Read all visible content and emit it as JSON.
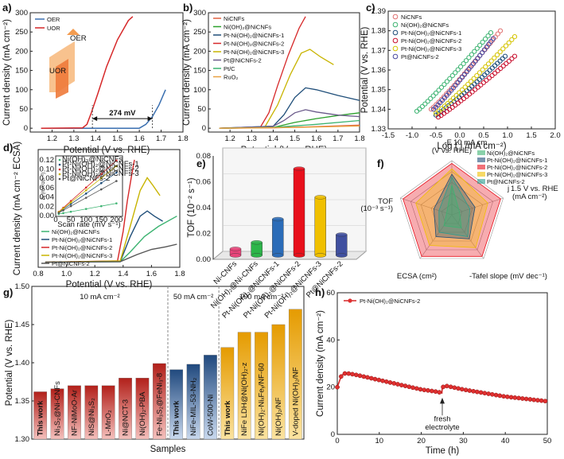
{
  "chart_data": [
    {
      "panel": "a",
      "type": "line",
      "xlabel": "Potential (V vs. RHE)",
      "ylabel": "Current density (mA cm⁻²)",
      "xlim": [
        1.1,
        1.8
      ],
      "ylim": [
        -10,
        300
      ],
      "xticks": [
        "1.2",
        "1.3",
        "1.4",
        "1.5",
        "1.6",
        "1.7",
        "1.8"
      ],
      "yticks": [
        "0",
        "50",
        "100",
        "150",
        "200",
        "250",
        "300"
      ],
      "series": [
        {
          "name": "OER",
          "color": "#3a6fb0",
          "x": [
            1.15,
            1.6,
            1.63,
            1.66,
            1.69,
            1.72
          ],
          "y": [
            0,
            0,
            10,
            30,
            60,
            100
          ]
        },
        {
          "name": "UOR",
          "color": "#d62728",
          "x": [
            1.15,
            1.34,
            1.36,
            1.38,
            1.41,
            1.45,
            1.5,
            1.55,
            1.57
          ],
          "y": [
            0,
            1,
            10,
            40,
            90,
            160,
            230,
            280,
            290
          ]
        }
      ],
      "annotations": {
        "gap": "274 mV",
        "inset_oer": "OER",
        "inset_uor": "UOR"
      }
    },
    {
      "panel": "b",
      "type": "line",
      "xlabel": "Potential (V vs. RHE)",
      "ylabel": "Current density (mA cm⁻²)",
      "xlim": [
        1.1,
        1.8
      ],
      "ylim": [
        -10,
        300
      ],
      "xticks": [
        "1.2",
        "1.3",
        "1.4",
        "1.5",
        "1.6",
        "1.7",
        "1.8"
      ],
      "yticks": [
        "0",
        "50",
        "100",
        "150",
        "200",
        "250",
        "300"
      ],
      "series": [
        {
          "name": "NiCNFs",
          "color": "#e06040",
          "x": [
            1.15,
            1.4,
            1.6,
            1.8
          ],
          "y": [
            0,
            1,
            4,
            8
          ]
        },
        {
          "name": "Ni(OH)₂@NiCNFs",
          "color": "#2ca02c",
          "x": [
            1.15,
            1.4,
            1.5,
            1.6,
            1.7,
            1.8
          ],
          "y": [
            0,
            2,
            15,
            25,
            33,
            40
          ]
        },
        {
          "name": "Pt-Ni(OH)₂@NiCNFs-1",
          "color": "#1f4e79",
          "x": [
            1.15,
            1.4,
            1.45,
            1.5,
            1.55,
            1.6,
            1.7,
            1.8
          ],
          "y": [
            0,
            5,
            35,
            80,
            105,
            100,
            85,
            72
          ]
        },
        {
          "name": "Pt-Ni(OH)₂@NiCNFs-2",
          "color": "#d62728",
          "x": [
            1.15,
            1.34,
            1.38,
            1.42,
            1.47,
            1.52,
            1.55
          ],
          "y": [
            0,
            2,
            40,
            110,
            190,
            260,
            290
          ]
        },
        {
          "name": "Pt-Ni(OH)₂@NiCNFs-3",
          "color": "#c8b400",
          "x": [
            1.15,
            1.36,
            1.42,
            1.48,
            1.53,
            1.57,
            1.62,
            1.68
          ],
          "y": [
            0,
            2,
            60,
            140,
            195,
            205,
            185,
            165
          ]
        },
        {
          "name": "Pt@NiCNFs-2",
          "color": "#6a5a8a",
          "x": [
            1.15,
            1.4,
            1.45,
            1.5,
            1.55,
            1.6,
            1.7,
            1.8
          ],
          "y": [
            0,
            5,
            20,
            40,
            48,
            42,
            34,
            30
          ]
        },
        {
          "name": "Pt/C",
          "color": "#3cb371",
          "x": [
            1.15,
            1.4,
            1.6,
            1.8
          ],
          "y": [
            0,
            2,
            10,
            20
          ]
        },
        {
          "name": "RuO₂",
          "color": "#e8a040",
          "x": [
            1.15,
            1.5,
            1.8
          ],
          "y": [
            0,
            2,
            6
          ]
        }
      ]
    },
    {
      "panel": "c",
      "type": "scatter",
      "xlabel": "Log ( j /mA cm⁻²)",
      "ylabel": "Potential (V vs. RHE)",
      "xlim": [
        -1.5,
        2.0
      ],
      "ylim": [
        1.33,
        1.39
      ],
      "xticks": [
        "-1.5",
        "-1.0",
        "-0.5",
        "0.0",
        "0.5",
        "1.0",
        "1.5",
        "2.0"
      ],
      "yticks": [
        "1.33",
        "1.34",
        "1.35",
        "1.36",
        "1.37",
        "1.38",
        "1.39"
      ],
      "series": [
        {
          "name": "NiCNFs",
          "color": "#e07070",
          "x0": -0.6,
          "x1": 0.85,
          "y0": 1.34,
          "y1": 1.38
        },
        {
          "name": "Ni(OH)₂@NiCNFs",
          "color": "#3cb371",
          "x0": -0.9,
          "x1": 0.65,
          "y0": 1.339,
          "y1": 1.379
        },
        {
          "name": "Pt-Ni(OH)₂@NiCNFs-1",
          "color": "#1f4e79",
          "x0": -0.5,
          "x1": 0.95,
          "y0": 1.337,
          "y1": 1.367
        },
        {
          "name": "Pt-Ni(OH)₂@NiCNFs-2",
          "color": "#c8102e",
          "x0": -0.45,
          "x1": 1.15,
          "y0": 1.336,
          "y1": 1.367
        },
        {
          "name": "Pt-Ni(OH)₂@NiCNFs-3",
          "color": "#d4c400",
          "x0": -0.5,
          "x1": 1.15,
          "y0": 1.338,
          "y1": 1.377
        },
        {
          "name": "Pt@NiCNFs-2",
          "color": "#4a4aa0",
          "x0": -0.55,
          "x1": 0.7,
          "y0": 1.34,
          "y1": 1.376
        }
      ]
    },
    {
      "panel": "d",
      "type": "line",
      "xlabel": "Potential (V vs. RHE)",
      "ylabel": "Current density (mA cm⁻² ECSA)",
      "xlim": [
        0.8,
        1.8
      ],
      "xticks": [
        "0.8",
        "1.0",
        "1.2",
        "1.4",
        "1.6",
        "1.8"
      ],
      "series": [
        {
          "name": "Ni(OH)₂@NiCNFs",
          "color": "#3cb371",
          "x": [
            0.85,
            1.38,
            1.45,
            1.55,
            1.65,
            1.78
          ],
          "y": [
            0,
            0.2,
            4,
            10,
            14,
            18
          ]
        },
        {
          "name": "Pt-Ni(OH)₂@NiCNFs-1",
          "color": "#1f4e79",
          "x": [
            0.85,
            1.38,
            1.45,
            1.52,
            1.57,
            1.62,
            1.68
          ],
          "y": [
            0,
            0.2,
            10,
            18,
            20,
            18,
            16
          ]
        },
        {
          "name": "Pt-Ni(OH)₂@NiCNFs-2",
          "color": "#d62728",
          "x": [
            0.85,
            1.36,
            1.4,
            1.43,
            1.46,
            1.48
          ],
          "y": [
            0,
            0.5,
            12,
            24,
            34,
            40
          ]
        },
        {
          "name": "Pt-Ni(OH)₂@NiCNFs-3",
          "color": "#c8b400",
          "x": [
            0.85,
            1.38,
            1.45,
            1.52,
            1.57,
            1.61,
            1.66
          ],
          "y": [
            0,
            0.5,
            14,
            28,
            33,
            30,
            26
          ]
        },
        {
          "name": "Pt@NiCNFs-2",
          "color": "#555555",
          "x": [
            0.85,
            1.38,
            1.5,
            1.6,
            1.7,
            1.78
          ],
          "y": [
            0,
            0.2,
            3,
            5,
            6,
            7
          ]
        }
      ],
      "inset": {
        "xlabel": "Scan rate (mV s⁻¹)",
        "ylabel": "Δj (mA cm⁻²)",
        "xticks": [
          "0",
          "50",
          "100",
          "150",
          "200"
        ],
        "yticks": [
          "0.00",
          "0.02",
          "0.04",
          "0.06",
          "0.08",
          "0.10",
          "0.12"
        ],
        "legend": [
          "Ni(OH)₂@NiCNFs",
          "Pt-Ni(OH)₂@NiCNFs-1",
          "Pt-Ni(OH)₂@NiCNFs-2",
          "Pt-Ni(OH)₂@NiCNFs-3",
          "Pt@NiCNFs-2"
        ],
        "colors": [
          "#3cb371",
          "#1f4e79",
          "#d62728",
          "#c8b400",
          "#555555"
        ],
        "slopes": [
          0.00012,
          0.00045,
          0.00058,
          0.00052,
          0.00036
        ]
      }
    },
    {
      "panel": "e",
      "type": "bar",
      "ylabel": "TOF (10⁻² s⁻¹)",
      "ylim": [
        0,
        0.08
      ],
      "yticks": [
        "0.00",
        "0.02",
        "0.04",
        "0.06",
        "0.08"
      ],
      "categories": [
        "Ni-CNFs",
        "Ni(OH)₂@Ni-CNFs",
        "Pt-Ni(OH)₂@NiCNFs-1",
        "Pt-Ni(OH)₂@NiCNFs-2",
        "Pt-Ni(OH)₂@NiCNFs-3",
        "Pt@NiCNFs-2"
      ],
      "values": [
        0.005,
        0.01,
        0.028,
        0.067,
        0.045,
        0.016
      ],
      "colors": [
        "#e8457a",
        "#2cb54a",
        "#2b6cb8",
        "#e8101c",
        "#f0c000",
        "#4050a0"
      ]
    },
    {
      "panel": "f",
      "type": "radar",
      "axes": [
        "-E10 mA cm⁻² (V vs. RHE)",
        "j1.5 V vs. RHE (mA cm⁻²)",
        "-Tafel slope (mV dec⁻¹)",
        "ECSA (cm²)",
        "TOF (10⁻³ s⁻¹)"
      ],
      "axis_labels": {
        "top_a": "-E",
        "top_b": "10 mA cm",
        "top_c": "(V vs. RHE)",
        "right_a": "j",
        "right_b": "1.5 V vs. RHE",
        "right_c": "(mA cm⁻²)",
        "br": "-Tafel slope (mV dec⁻¹)",
        "bl": "ECSA (cm²)",
        "left_a": "TOF",
        "left_b": "(10⁻³ s⁻¹)"
      },
      "series": [
        {
          "name": "Ni(OH)₂@NiCNFs",
          "color": "#3cb371",
          "values": [
            0.55,
            0.15,
            0.3,
            0.25,
            0.1
          ]
        },
        {
          "name": "Pt-Ni(OH)₂@NiCNFs-1",
          "color": "#1f4e79",
          "values": [
            0.75,
            0.45,
            0.55,
            0.5,
            0.35
          ]
        },
        {
          "name": "Pt-Ni(OH)₂@NiCNFs-2",
          "color": "#e8101c",
          "values": [
            0.95,
            0.95,
            0.95,
            0.95,
            0.95
          ]
        },
        {
          "name": "Pt-Ni(OH)₂@NiCNFs-3",
          "color": "#f0c000",
          "values": [
            0.85,
            0.7,
            0.75,
            0.7,
            0.7
          ]
        },
        {
          "name": "Pt@NiCNFs-2",
          "color": "#2a9d8f",
          "values": [
            0.7,
            0.35,
            0.5,
            0.4,
            0.25
          ]
        }
      ]
    },
    {
      "panel": "g",
      "type": "bar",
      "xlabel": "Samples",
      "ylabel": "Potential (V vs. RHE)",
      "ylim": [
        1.3,
        1.5
      ],
      "yticks": [
        "1.30",
        "1.35",
        "1.40",
        "1.45",
        "1.50"
      ],
      "groups": [
        "10 mA cm⁻²",
        "50 mA cm⁻²",
        "100 mA cm⁻²"
      ],
      "categories": [
        "This work",
        "Ni₃S₂@Ni-CNFs",
        "NF-NiMoO-Ar",
        "NiS@Ni₃S₂",
        "L-MnO₂",
        "Ni@NCT-3",
        "Ni(OH)₂-PBA",
        "Fe-Ni₃S₂@FeNi₃-8",
        "This work",
        "NiFe-MIL-53-NH₂",
        "CoW-500-Ni",
        "This work",
        "NiFe LDH@Ni(OH)₂-z",
        "Ni(OH)₂-NiₓFeᵧ/NF-60",
        "Ni(OH)₂/NF",
        "V-doped Ni(OH)₂/NF"
      ],
      "values": [
        1.362,
        1.366,
        1.37,
        1.37,
        1.37,
        1.38,
        1.38,
        1.399,
        1.391,
        1.398,
        1.41,
        1.42,
        1.44,
        1.44,
        1.45,
        1.47
      ],
      "group_of": [
        0,
        0,
        0,
        0,
        0,
        0,
        0,
        0,
        1,
        1,
        1,
        2,
        2,
        2,
        2,
        2
      ]
    },
    {
      "panel": "h",
      "type": "line",
      "xlabel": "Time (h)",
      "ylabel": "Current density (mA cm⁻²)",
      "xlim": [
        0,
        50
      ],
      "ylim": [
        0,
        60
      ],
      "xticks": [
        "0",
        "10",
        "20",
        "30",
        "40",
        "50"
      ],
      "yticks": [
        "0",
        "20",
        "40",
        "60"
      ],
      "series": [
        {
          "name": "Pt-Ni(OH)₂@NiCNFs-2",
          "color": "#d62728",
          "x": [
            0,
            1,
            2,
            5,
            10,
            15,
            20,
            24,
            24.9,
            25,
            26,
            30,
            35,
            40,
            45,
            50
          ],
          "y": [
            20,
            25,
            26,
            25,
            23,
            21,
            19,
            18,
            17.5,
            20,
            20.5,
            19,
            17.5,
            16,
            15,
            14
          ]
        }
      ],
      "annotations": {
        "event": "fresh electrolyte",
        "event_x": 25
      }
    }
  ],
  "panels": {
    "a": "a)",
    "b": "b)",
    "c": "c)",
    "d": "d)",
    "e": "e)",
    "f": "f)",
    "g": "g)",
    "h": "h)"
  }
}
